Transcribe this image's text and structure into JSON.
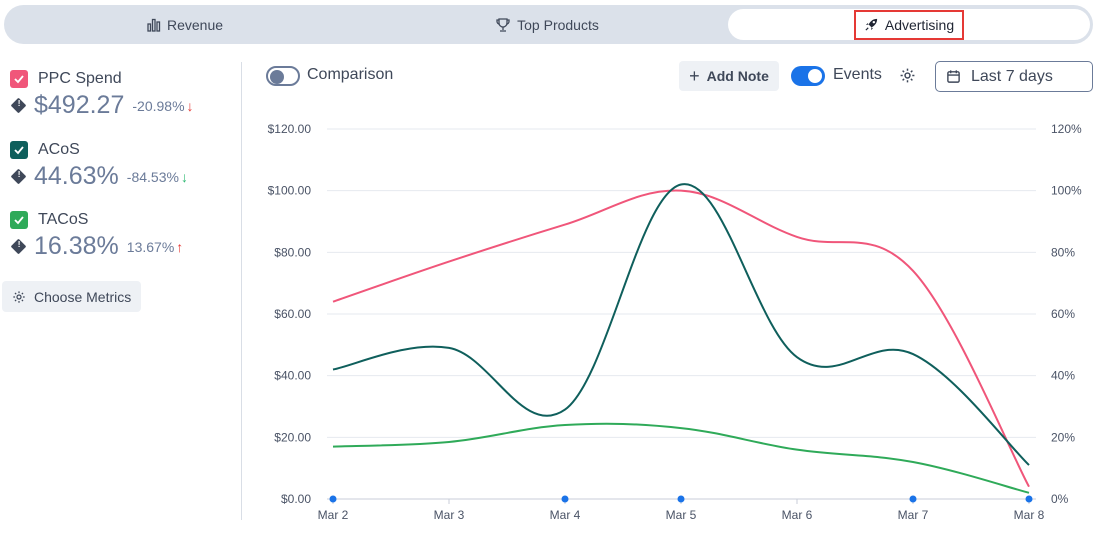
{
  "tabs": [
    {
      "label": "Revenue",
      "icon": "bar-chart-icon"
    },
    {
      "label": "Top Products",
      "icon": "trophy-icon"
    },
    {
      "label": "Advertising",
      "icon": "rocket-icon"
    }
  ],
  "metrics": [
    {
      "label": "PPC Spend",
      "value": "$492.27",
      "change": "-20.98%",
      "arrow": "↓",
      "check_color": "#f0567a",
      "arrow_color": "#e53935"
    },
    {
      "label": "ACoS",
      "value": "44.63%",
      "change": "-84.53%",
      "arrow": "↓",
      "check_color": "#0f5f5c",
      "arrow_color": "#2eb872"
    },
    {
      "label": "TACoS",
      "value": "16.38%",
      "change": "13.67%",
      "arrow": "↑",
      "check_color": "#2faa59",
      "arrow_color": "#e53935"
    }
  ],
  "choose_metrics_label": "Choose Metrics",
  "toolbar": {
    "comparison_label": "Comparison",
    "comparison_on": false,
    "add_note_label": "Add Note",
    "events_label": "Events",
    "events_on": true,
    "date_range": "Last 7 days"
  },
  "chart_data": {
    "type": "line",
    "categories": [
      "Mar 2",
      "Mar 3",
      "Mar 4",
      "Mar 5",
      "Mar 6",
      "Mar 7",
      "Mar 8"
    ],
    "y_left_ticks": [
      "$0.00",
      "$20.00",
      "$40.00",
      "$60.00",
      "$80.00",
      "$100.00",
      "$120.00"
    ],
    "y_right_ticks": [
      "0%",
      "20%",
      "40%",
      "60%",
      "80%",
      "100%",
      "120%"
    ],
    "ylim": [
      0,
      120
    ],
    "series": [
      {
        "name": "PPC Spend",
        "color": "#f0567a",
        "values": [
          64,
          77,
          89,
          100,
          85,
          74,
          4
        ]
      },
      {
        "name": "ACoS",
        "color": "#0f5f5c",
        "values": [
          42,
          49,
          29,
          102,
          46,
          47,
          11
        ]
      },
      {
        "name": "TACoS",
        "color": "#2faa59",
        "values": [
          17,
          18.5,
          24,
          23,
          16,
          12,
          2
        ]
      }
    ],
    "event_markers": [
      "Mar 2",
      "Mar 4",
      "Mar 5",
      "Mar 7",
      "Mar 8"
    ],
    "event_color": "#1a73e8"
  }
}
